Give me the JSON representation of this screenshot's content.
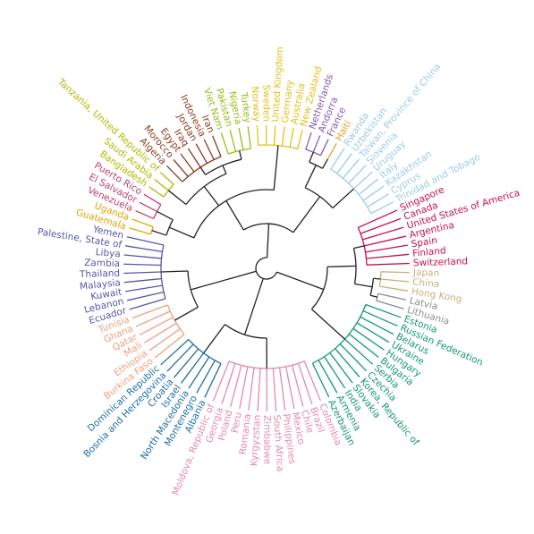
{
  "clusters": [
    {
      "color": "#c8104a",
      "labels": [
        "Singapore",
        "Canada",
        "United States of America",
        "Argentina",
        "Spain",
        "Finland",
        "Switzerland"
      ]
    },
    {
      "color": "#c9b07c",
      "labels": [
        "Japan",
        "China",
        "Hong Kong"
      ]
    },
    {
      "color": "#8c8c8c",
      "labels": [
        "Latvia",
        "Lithuania"
      ]
    },
    {
      "color": "#139a6a",
      "labels": [
        "Estonia",
        "Russian Federation",
        "Belarus",
        "Ukraine",
        "Hungary",
        "Bulgaria",
        "Serbia",
        "Czechia",
        "Korea, Republic of",
        "Slovakia",
        "India",
        "Armenia",
        "Azerbaijan"
      ]
    },
    {
      "color": "#e68aa8",
      "labels": [
        "Colombia",
        "Brazil",
        "Chile",
        "Mexico",
        "Philippines",
        "South Africa",
        "Zimbabwe",
        "Kyrgyzstan",
        "Romania",
        "Peru",
        "Poland",
        "Georgia",
        "Moldova, Republic of"
      ]
    },
    {
      "color": "#1f6ea8",
      "labels": [
        "Albania",
        "Montenegro",
        "North Macedonia",
        "Israel",
        "Croatia",
        "Bosnia and Herzegovina",
        "Dominican Republic"
      ]
    },
    {
      "color": "#f0a080",
      "labels": [
        "Burkina Faso",
        "Ethiopia",
        "Mali",
        "Qatar",
        "Ghana",
        "Tunisia"
      ]
    },
    {
      "color": "#5856a8",
      "labels": [
        "Ecuador",
        "Lebanon",
        "Kuwait",
        "Malaysia",
        "Thailand",
        "Zambia",
        "Libya",
        "Palestine, State of",
        "Yemen"
      ]
    },
    {
      "color": "#e0a800",
      "labels": [
        "Guatemala",
        "Uganda"
      ]
    },
    {
      "color": "#c0406a",
      "labels": [
        "Venezuela",
        "El Salvador",
        "Puerto Rico"
      ]
    },
    {
      "color": "#b0b800",
      "labels": [
        "Bangladesh",
        "Saudi Arabia",
        "Tanzania, United Republic of"
      ]
    },
    {
      "color": "#8b3a1a",
      "labels": [
        "Algeria",
        "Morocco",
        "Egypt",
        "Iraq",
        "Jordan",
        "Indonesia",
        "Iran"
      ]
    },
    {
      "color": "#98bc18",
      "labels": [
        "Viet Nam",
        "Pakistan",
        "Nigeria",
        "Turkey"
      ]
    },
    {
      "color": "#e6c018",
      "labels": [
        "Norway",
        "Sweden",
        "United Kingdom",
        "Germany",
        "Australia",
        "New Zealand"
      ]
    },
    {
      "color": "#8a5aa8",
      "labels": [
        "Netherlands",
        "Andorra",
        "France"
      ]
    },
    {
      "color": "#f0a020",
      "labels": [
        "Haiti"
      ]
    },
    {
      "color": "#9ccbe8",
      "labels": [
        "Rwanda",
        "Uzbekistan",
        "Taiwan, Province of China",
        "Slovenia",
        "Uruguay",
        "Italy",
        "Kazakhstan",
        "Cyprus",
        "Trinidad and Tobago"
      ]
    }
  ]
}
